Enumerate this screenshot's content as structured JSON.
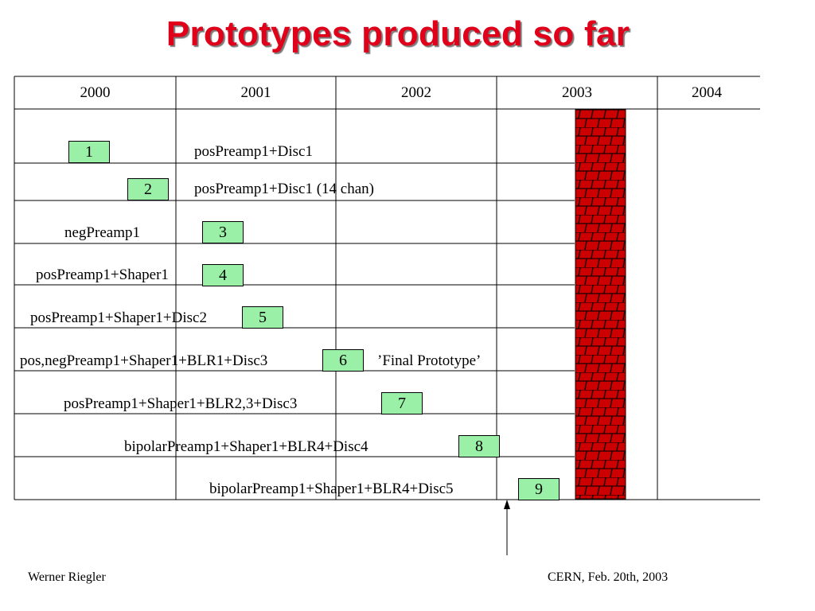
{
  "title": "Prototypes produced so far",
  "years": [
    "2000",
    "2001",
    "2002",
    "2003",
    "2004"
  ],
  "rows": [
    {
      "id": "1",
      "label": "posPreamp1+Disc1",
      "note": ""
    },
    {
      "id": "2",
      "label": "posPreamp1+Disc1 (14 chan)",
      "note": ""
    },
    {
      "id": "3",
      "label": "negPreamp1",
      "note": ""
    },
    {
      "id": "4",
      "label": "posPreamp1+Shaper1",
      "note": ""
    },
    {
      "id": "5",
      "label": "posPreamp1+Shaper1+Disc2",
      "note": ""
    },
    {
      "id": "6",
      "label": "pos,negPreamp1+Shaper1+BLR1+Disc3",
      "note": "’Final Prototype’"
    },
    {
      "id": "7",
      "label": "posPreamp1+Shaper1+BLR2,3+Disc3",
      "note": ""
    },
    {
      "id": "8",
      "label": "bipolarPreamp1+Shaper1+BLR4+Disc4",
      "note": ""
    },
    {
      "id": "9",
      "label": "bipolarPreamp1+Shaper1+BLR4+Disc5",
      "note": ""
    }
  ],
  "colors": {
    "title": "#e0001a",
    "box_fill": "#99f0a6",
    "wall_fill": "#cc0000"
  },
  "icons": {
    "wall": "brick-wall-icon",
    "marker": "arrow-up-icon"
  },
  "footer": {
    "left": "Werner Riegler",
    "right": "CERN, Feb. 20th, 2003"
  }
}
